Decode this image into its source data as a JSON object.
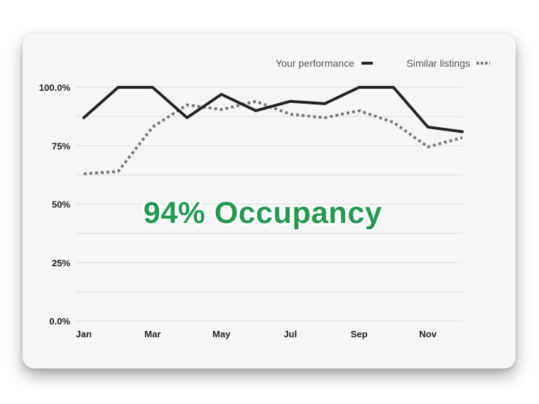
{
  "overlay": {
    "headline": "94% Occupancy",
    "color": "#229a4f"
  },
  "legend": {
    "position": "top-right",
    "items": [
      {
        "label": "Your performance",
        "style": "solid",
        "color": "#222222"
      },
      {
        "label": "Similar listings",
        "style": "dotted",
        "color": "#777777"
      }
    ]
  },
  "chart_data": {
    "type": "line",
    "x": [
      "Jan",
      "Feb",
      "Mar",
      "Apr",
      "May",
      "Jun",
      "Jul",
      "Aug",
      "Sep",
      "Oct",
      "Nov",
      "Dec"
    ],
    "x_tick_labels": [
      "Jan",
      "Mar",
      "May",
      "Jul",
      "Sep",
      "Nov"
    ],
    "y_tick_labels": [
      "0.0%",
      "25%",
      "50%",
      "75%",
      "100.0%"
    ],
    "ylim": [
      0,
      100
    ],
    "grid": true,
    "series": [
      {
        "name": "Your performance",
        "style": "solid",
        "color": "#222222",
        "values": [
          87,
          100,
          100,
          87,
          97,
          90,
          94,
          93,
          100,
          100,
          83,
          81
        ]
      },
      {
        "name": "Similar listings",
        "style": "dotted",
        "color": "#777777",
        "values": [
          63,
          64,
          83,
          92.5,
          90.5,
          94,
          88.5,
          87,
          90,
          85,
          74.5,
          78.5
        ]
      }
    ]
  }
}
